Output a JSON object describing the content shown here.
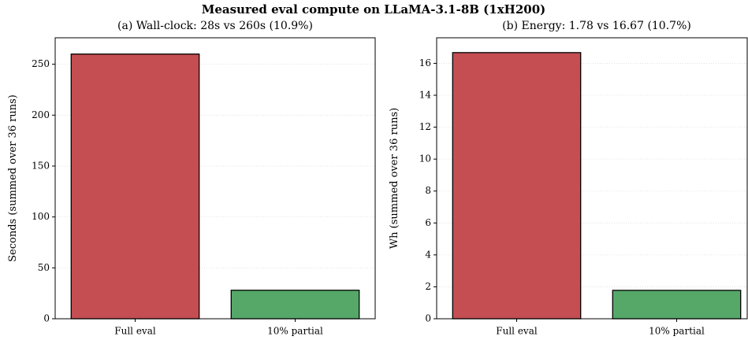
{
  "title": "Measured eval compute on LLaMA-3.1-8B (1xH200)",
  "chart_data": [
    {
      "type": "bar",
      "title": "(a) Wall-clock: 28s vs 260s  (10.9%)",
      "ylabel": "Seconds (summed over 36 runs)",
      "categories": [
        "Full eval",
        "10% partial"
      ],
      "values": [
        260,
        28
      ],
      "colors": [
        "#c44e52",
        "#55a868"
      ],
      "ylim": [
        0,
        276
      ],
      "yticks": [
        0,
        50,
        100,
        150,
        200,
        250
      ],
      "grid": true
    },
    {
      "type": "bar",
      "title": "(b) Energy: 1.78 vs 16.67  (10.7%)",
      "ylabel": "Wh (summed over 36 runs)",
      "categories": [
        "Full eval",
        "10% partial"
      ],
      "values": [
        16.67,
        1.78
      ],
      "colors": [
        "#c44e52",
        "#55a868"
      ],
      "ylim": [
        0,
        17.6
      ],
      "yticks": [
        0,
        2,
        4,
        6,
        8,
        10,
        12,
        14,
        16
      ],
      "grid": true
    }
  ]
}
